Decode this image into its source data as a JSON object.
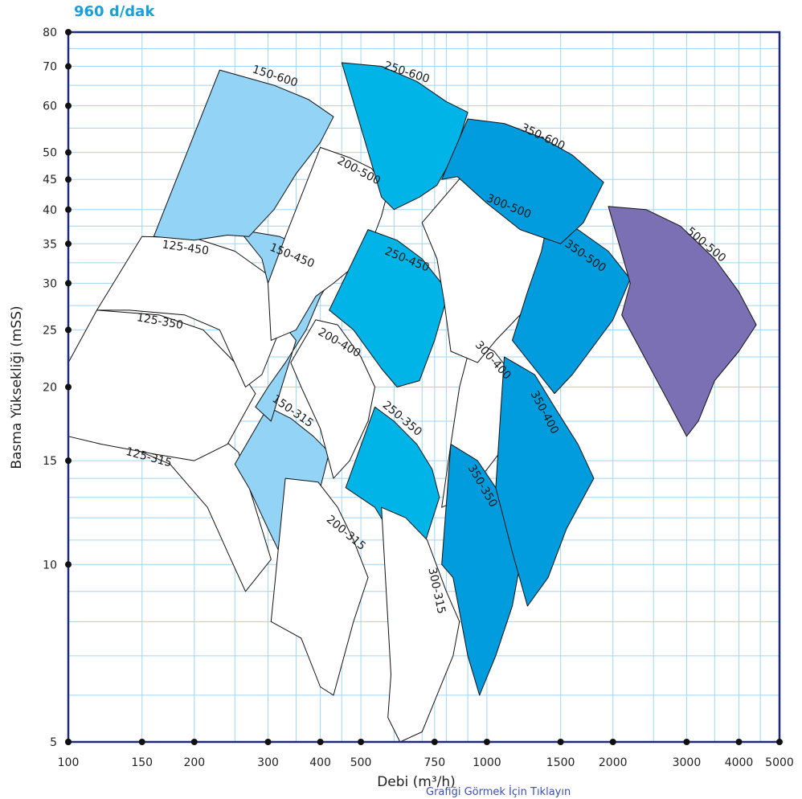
{
  "chart_data": {
    "type": "area",
    "title": "960 d/dak",
    "xlabel": "Debi (m³/h)",
    "ylabel": "Basma Yüksekliği (mSS)",
    "x_scale": "log",
    "y_scale": "log",
    "xlim": [
      100,
      5000
    ],
    "ylim": [
      5,
      80
    ],
    "x_ticks": [
      100,
      150,
      200,
      300,
      400,
      500,
      750,
      1000,
      1500,
      2000,
      3000,
      4000,
      5000
    ],
    "x_tick_labels": [
      "100",
      "150",
      "200",
      "300",
      "400",
      "500",
      "750",
      "1000",
      "1500",
      "2000",
      "3000",
      "4000",
      "5000"
    ],
    "y_ticks": [
      5,
      10,
      15,
      20,
      25,
      30,
      35,
      40,
      45,
      50,
      60,
      70,
      80
    ],
    "y_tick_labels": [
      "5",
      "10",
      "15",
      "20",
      "25",
      "30",
      "35",
      "40",
      "45",
      "50",
      "60",
      "70",
      "80"
    ],
    "grid": true,
    "colors": {
      "white": "#ffffff",
      "light_blue": "#93d3f5",
      "medium_blue": "#00b4e8",
      "dark_blue": "#009cde",
      "purple": "#7b70b3",
      "axis": "#1f2a7a",
      "grid": "#9fd6f0"
    },
    "series": [
      {
        "name": "125-315",
        "color": "white",
        "points": [
          [
            100,
            16.5
          ],
          [
            135,
            16.0
          ],
          [
            175,
            14.8
          ],
          [
            215,
            12.5
          ],
          [
            240,
            10.5
          ],
          [
            265,
            9.0
          ],
          [
            305,
            10.2
          ],
          [
            255,
            15.5
          ],
          [
            200,
            18.0
          ],
          [
            145,
            18.8
          ],
          [
            100,
            19.0
          ]
        ]
      },
      {
        "name": "125-350",
        "color": "white",
        "points": [
          [
            117,
            27.0
          ],
          [
            165,
            26.5
          ],
          [
            210,
            25.0
          ],
          [
            250,
            22.0
          ],
          [
            280,
            19.5
          ],
          [
            240,
            16.0
          ],
          [
            200,
            15.0
          ],
          [
            160,
            15.4
          ],
          [
            120,
            16.0
          ],
          [
            100,
            16.5
          ],
          [
            100,
            22.0
          ]
        ]
      },
      {
        "name": "125-450",
        "color": "white",
        "points": [
          [
            150,
            36.0
          ],
          [
            200,
            35.8
          ],
          [
            250,
            34.0
          ],
          [
            300,
            31.0
          ],
          [
            345,
            28.0
          ],
          [
            320,
            25.0
          ],
          [
            290,
            21.0
          ],
          [
            265,
            20.0
          ],
          [
            230,
            25.0
          ],
          [
            190,
            26.5
          ],
          [
            140,
            27.0
          ],
          [
            117,
            27.0
          ]
        ]
      },
      {
        "name": "150-315",
        "color": "light_blue",
        "points": [
          [
            250,
            14.8
          ],
          [
            300,
            18.5
          ],
          [
            340,
            17.7
          ],
          [
            385,
            16.5
          ],
          [
            420,
            15.5
          ],
          [
            400,
            13.5
          ],
          [
            350,
            11.0
          ],
          [
            330,
            10.0
          ],
          [
            300,
            11.5
          ],
          [
            270,
            13.5
          ]
        ]
      },
      {
        "name": "150-450",
        "color": "light_blue",
        "points": [
          [
            255,
            37.0
          ],
          [
            320,
            36.0
          ],
          [
            385,
            34.0
          ],
          [
            430,
            31.0
          ],
          [
            400,
            28.5
          ],
          [
            370,
            25.0
          ],
          [
            330,
            22.0
          ],
          [
            300,
            20.0
          ],
          [
            280,
            18.5
          ],
          [
            305,
            17.5
          ],
          [
            350,
            24.0
          ],
          [
            320,
            26.0
          ],
          [
            300,
            30.0
          ],
          [
            290,
            33.0
          ]
        ]
      },
      {
        "name": "150-600",
        "color": "light_blue",
        "points": [
          [
            230,
            69.0
          ],
          [
            310,
            65.0
          ],
          [
            375,
            61.5
          ],
          [
            430,
            57.5
          ],
          [
            400,
            52.0
          ],
          [
            350,
            46.0
          ],
          [
            310,
            40.0
          ],
          [
            270,
            36.0
          ],
          [
            240,
            36.2
          ],
          [
            200,
            35.5
          ],
          [
            160,
            36.0
          ]
        ]
      },
      {
        "name": "200-315",
        "color": "white",
        "points": [
          [
            330,
            14.0
          ],
          [
            395,
            13.8
          ],
          [
            440,
            12.5
          ],
          [
            480,
            11.0
          ],
          [
            520,
            9.5
          ],
          [
            480,
            8.0
          ],
          [
            430,
            6.0
          ],
          [
            400,
            6.2
          ],
          [
            360,
            7.5
          ],
          [
            305,
            8.0
          ]
        ]
      },
      {
        "name": "200-400",
        "color": "white",
        "points": [
          [
            390,
            26.0
          ],
          [
            440,
            25.5
          ],
          [
            500,
            22.5
          ],
          [
            540,
            20.0
          ],
          [
            520,
            17.5
          ],
          [
            470,
            15.0
          ],
          [
            430,
            14.0
          ],
          [
            400,
            17.0
          ],
          [
            360,
            20.0
          ],
          [
            340,
            22.0
          ]
        ]
      },
      {
        "name": "200-500",
        "color": "white",
        "points": [
          [
            400,
            51.0
          ],
          [
            470,
            49.0
          ],
          [
            530,
            47.0
          ],
          [
            580,
            43.0
          ],
          [
            560,
            39.0
          ],
          [
            520,
            34.0
          ],
          [
            480,
            32.0
          ],
          [
            430,
            30.0
          ],
          [
            390,
            28.5
          ],
          [
            350,
            25.0
          ],
          [
            305,
            24.0
          ],
          [
            300,
            30.0
          ],
          [
            330,
            36.0
          ]
        ]
      },
      {
        "name": "250-350",
        "color": "medium_blue",
        "points": [
          [
            460,
            13.5
          ],
          [
            540,
            18.5
          ],
          [
            600,
            17.5
          ],
          [
            680,
            16.0
          ],
          [
            740,
            14.5
          ],
          [
            770,
            13.0
          ],
          [
            700,
            10.5
          ],
          [
            640,
            10.0
          ],
          [
            580,
            11.5
          ],
          [
            540,
            12.5
          ]
        ]
      },
      {
        "name": "250-450",
        "color": "medium_blue",
        "points": [
          [
            520,
            37.0
          ],
          [
            610,
            35.5
          ],
          [
            700,
            33.0
          ],
          [
            810,
            29.0
          ],
          [
            750,
            24.0
          ],
          [
            690,
            20.5
          ],
          [
            610,
            20.0
          ],
          [
            560,
            21.5
          ],
          [
            480,
            25.0
          ],
          [
            420,
            27.0
          ]
        ]
      },
      {
        "name": "250-600",
        "color": "medium_blue",
        "points": [
          [
            450,
            71.0
          ],
          [
            560,
            70.0
          ],
          [
            680,
            66.0
          ],
          [
            800,
            61.0
          ],
          [
            900,
            58.5
          ],
          [
            840,
            50.0
          ],
          [
            760,
            44.0
          ],
          [
            690,
            42.0
          ],
          [
            600,
            40.0
          ],
          [
            560,
            42.0
          ]
        ]
      },
      {
        "name": "300-315",
        "color": "white",
        "points": [
          [
            560,
            12.5
          ],
          [
            640,
            12.0
          ],
          [
            720,
            11.0
          ],
          [
            800,
            9.0
          ],
          [
            860,
            8.0
          ],
          [
            830,
            7.0
          ],
          [
            700,
            5.2
          ],
          [
            620,
            5.0
          ],
          [
            580,
            5.5
          ],
          [
            590,
            6.5
          ]
        ]
      },
      {
        "name": "300-400",
        "color": "white",
        "points": [
          [
            920,
            24.0
          ],
          [
            1040,
            23.0
          ],
          [
            1150,
            21.0
          ],
          [
            1280,
            19.0
          ],
          [
            1150,
            16.5
          ],
          [
            1000,
            14.5
          ],
          [
            880,
            13.0
          ],
          [
            780,
            12.5
          ],
          [
            820,
            16.0
          ],
          [
            860,
            20.0
          ]
        ]
      },
      {
        "name": "300-500",
        "color": "white",
        "points": [
          [
            870,
            45.5
          ],
          [
            1000,
            44.0
          ],
          [
            1200,
            40.0
          ],
          [
            1400,
            36.0
          ],
          [
            1550,
            34.0
          ],
          [
            1350,
            30.0
          ],
          [
            1200,
            26.5
          ],
          [
            1050,
            24.0
          ],
          [
            950,
            22.0
          ],
          [
            820,
            23.0
          ],
          [
            790,
            28.0
          ],
          [
            760,
            33.0
          ],
          [
            700,
            38.0
          ]
        ]
      },
      {
        "name": "350-350",
        "color": "dark_blue",
        "points": [
          [
            820,
            16.0
          ],
          [
            950,
            15.0
          ],
          [
            1050,
            13.5
          ],
          [
            1150,
            11.5
          ],
          [
            1200,
            10.0
          ],
          [
            1150,
            8.5
          ],
          [
            1050,
            7.0
          ],
          [
            960,
            6.0
          ],
          [
            900,
            7.0
          ],
          [
            830,
            9.5
          ],
          [
            780,
            10.0
          ]
        ]
      },
      {
        "name": "350-400",
        "color": "dark_blue",
        "points": [
          [
            1100,
            22.5
          ],
          [
            1300,
            21.0
          ],
          [
            1450,
            18.5
          ],
          [
            1650,
            16.0
          ],
          [
            1800,
            14.0
          ],
          [
            1550,
            11.5
          ],
          [
            1400,
            9.5
          ],
          [
            1250,
            8.5
          ],
          [
            1150,
            10.5
          ],
          [
            1050,
            13.5
          ]
        ]
      },
      {
        "name": "350-500",
        "color": "dark_blue",
        "points": [
          [
            1400,
            38.5
          ],
          [
            1650,
            37.0
          ],
          [
            1950,
            34.0
          ],
          [
            2200,
            30.5
          ],
          [
            2000,
            26.0
          ],
          [
            1800,
            23.5
          ],
          [
            1600,
            21.0
          ],
          [
            1450,
            19.5
          ],
          [
            1300,
            21.5
          ],
          [
            1150,
            24.0
          ],
          [
            1250,
            29.0
          ],
          [
            1350,
            34.0
          ]
        ]
      },
      {
        "name": "350-600",
        "color": "dark_blue",
        "points": [
          [
            900,
            57.0
          ],
          [
            1100,
            56.0
          ],
          [
            1350,
            53.0
          ],
          [
            1600,
            49.5
          ],
          [
            1900,
            44.5
          ],
          [
            1700,
            38.0
          ],
          [
            1500,
            35.0
          ],
          [
            1200,
            37.0
          ],
          [
            1000,
            41.0
          ],
          [
            850,
            45.5
          ],
          [
            780,
            45.0
          ]
        ]
      },
      {
        "name": "500-500",
        "color": "purple",
        "points": [
          [
            1950,
            40.5
          ],
          [
            2400,
            40.0
          ],
          [
            2900,
            37.5
          ],
          [
            3500,
            33.0
          ],
          [
            4000,
            29.0
          ],
          [
            4400,
            25.5
          ],
          [
            4000,
            23.0
          ],
          [
            3500,
            20.5
          ],
          [
            3200,
            17.5
          ],
          [
            3000,
            16.5
          ],
          [
            2700,
            19.0
          ],
          [
            2300,
            23.5
          ],
          [
            2100,
            26.5
          ],
          [
            2200,
            30.0
          ]
        ]
      }
    ],
    "labels": [
      {
        "text": "150-600",
        "x": 310,
        "y": 66.5,
        "rot": 18
      },
      {
        "text": "250-600",
        "x": 640,
        "y": 67.5,
        "rot": 18
      },
      {
        "text": "350-600",
        "x": 1350,
        "y": 52.5,
        "rot": 25
      },
      {
        "text": "200-500",
        "x": 490,
        "y": 46.0,
        "rot": 28
      },
      {
        "text": "300-500",
        "x": 1120,
        "y": 40.0,
        "rot": 22
      },
      {
        "text": "500-500",
        "x": 3300,
        "y": 34.5,
        "rot": 40
      },
      {
        "text": "350-500",
        "x": 1700,
        "y": 33.0,
        "rot": 35
      },
      {
        "text": "125-450",
        "x": 190,
        "y": 34.0,
        "rot": 8
      },
      {
        "text": "150-450",
        "x": 340,
        "y": 33.0,
        "rot": 22
      },
      {
        "text": "250-450",
        "x": 640,
        "y": 32.5,
        "rot": 22
      },
      {
        "text": "125-350",
        "x": 165,
        "y": 25.5,
        "rot": 10
      },
      {
        "text": "200-400",
        "x": 440,
        "y": 23.5,
        "rot": 30
      },
      {
        "text": "300-400",
        "x": 1020,
        "y": 22.0,
        "rot": 48
      },
      {
        "text": "150-315",
        "x": 340,
        "y": 18.0,
        "rot": 35
      },
      {
        "text": "250-350",
        "x": 620,
        "y": 17.5,
        "rot": 40
      },
      {
        "text": "350-400",
        "x": 1350,
        "y": 18.0,
        "rot": 62
      },
      {
        "text": "125-315",
        "x": 155,
        "y": 15.0,
        "rot": 15
      },
      {
        "text": "350-350",
        "x": 960,
        "y": 13.5,
        "rot": 60
      },
      {
        "text": "200-315",
        "x": 455,
        "y": 11.2,
        "rot": 40
      },
      {
        "text": "300-315",
        "x": 745,
        "y": 9.0,
        "rot": 78
      }
    ]
  },
  "footer_text": "Grafiği Görmek İçin Tıklayın"
}
